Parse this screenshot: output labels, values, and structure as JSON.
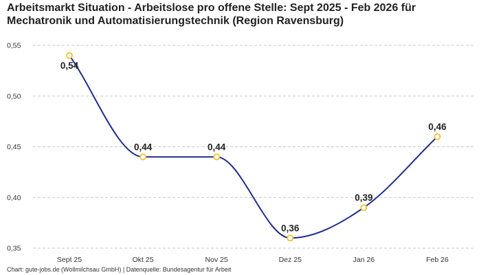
{
  "chart_data": {
    "type": "line",
    "title": "Arbeitsmarkt Situation - Arbeitslose pro offene Stelle: Sept 2025 - Feb 2026 für Mechatronik und Automatisierungstechnik (Region Ravensburg)",
    "categories": [
      "Sept 25",
      "Okt 25",
      "Nov 25",
      "Dez 25",
      "Jan 26",
      "Feb 26"
    ],
    "series": [
      {
        "values": [
          0.54,
          0.44,
          0.44,
          0.36,
          0.39,
          0.46
        ],
        "data_labels": [
          "0,54",
          "0,44",
          "0,44",
          "0,36",
          "0,39",
          "0,46"
        ]
      }
    ],
    "yticks": [
      0.35,
      0.4,
      0.45,
      0.5,
      0.55
    ],
    "ytick_labels": [
      "0,35",
      "0,40",
      "0,45",
      "0,50",
      "0,55"
    ],
    "ylim": [
      0.35,
      0.55
    ],
    "xlabel": "",
    "ylabel": "",
    "grid": "horizontal dashed",
    "line_smoothing": "smooth",
    "colors": {
      "line": "#1f2d8a",
      "marker_stroke": "#f2c230",
      "marker_fill": "#ffffff",
      "grid": "#c8c8c8"
    }
  },
  "footer": {
    "source": "Chart: gute-jobs.de (Wollmilchsau GmbH) | Datenquelle: Bundesagentur für Arbeit"
  }
}
